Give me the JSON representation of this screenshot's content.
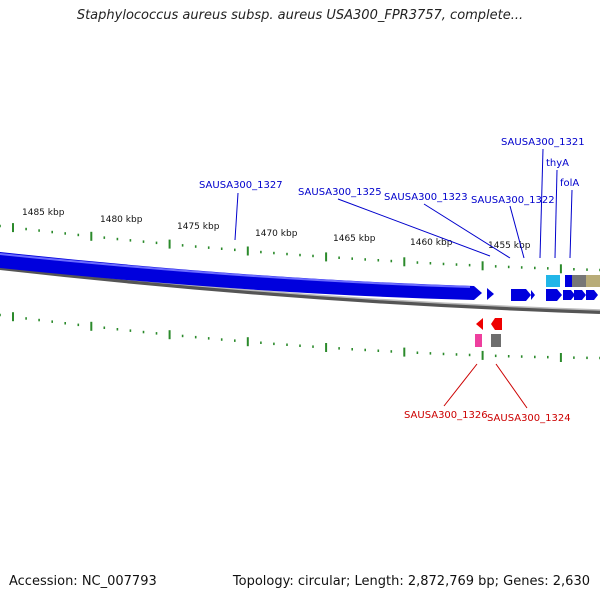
{
  "title": "Staphylococcus aureus subsp. aureus USA300_FPR3757, complete...",
  "footer": {
    "accession": "Accession: NC_007793",
    "summary": "Topology: circular; Length: 2,872,769 bp; Genes: 2,630"
  },
  "colors": {
    "forward_gene": "#0000dd",
    "reverse_gene": "#ee0000",
    "forward_label": "#0000cc",
    "reverse_label": "#cc0000",
    "tick": "#2b8a2b",
    "backbone": "#777777"
  },
  "ruler_labels": [
    "1485 kbp",
    "1480 kbp",
    "1475 kbp",
    "1470 kbp",
    "1465 kbp",
    "1460 kbp",
    "1455 kbp"
  ],
  "forward_gene_labels": [
    "SAUSA300_1327",
    "SAUSA300_1325",
    "SAUSA300_1323",
    "SAUSA300_1322",
    "SAUSA300_1321",
    "thyA",
    "folA"
  ],
  "reverse_gene_labels": [
    "SAUSA300_1326",
    "SAUSA300_1324"
  ]
}
